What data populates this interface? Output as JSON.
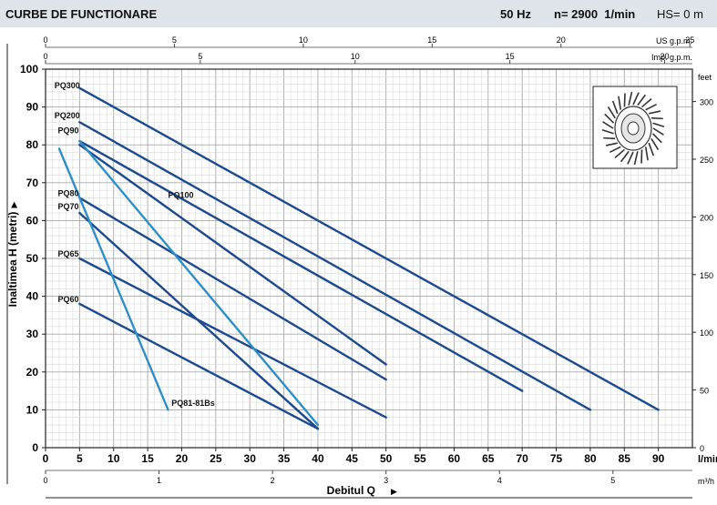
{
  "header": {
    "title": "CURBE DE FUNCTIONARE",
    "freq": "50 Hz",
    "speed": "n= 2900  1/min",
    "hs": "HS= 0 m"
  },
  "chart_data": {
    "type": "line",
    "xlabel": "Debitul  Q",
    "ylabel": "Inaltimea  H  (metri)",
    "x_unit": "l/min",
    "y_right_unit": "feet",
    "xlim": [
      0,
      95
    ],
    "ylim": [
      0,
      100
    ],
    "grid": true,
    "x_ticks": [
      0,
      5,
      10,
      15,
      20,
      25,
      30,
      35,
      40,
      45,
      50,
      55,
      60,
      65,
      70,
      75,
      80,
      85,
      90
    ],
    "y_ticks": [
      0,
      10,
      20,
      30,
      40,
      50,
      60,
      70,
      80,
      90,
      100
    ],
    "top_axes": [
      {
        "label": "US g.p.m.",
        "ticks": [
          0,
          5,
          10,
          15,
          20,
          25
        ]
      },
      {
        "label": "Imp. g.p.m.",
        "ticks": [
          0,
          5,
          10,
          15,
          20
        ]
      }
    ],
    "bottom_axis2": {
      "label": "m³/h",
      "ticks": [
        0,
        1,
        2,
        3,
        4,
        5
      ]
    },
    "right_axis": {
      "label": "feet",
      "ticks": [
        0,
        50,
        100,
        150,
        200,
        250,
        300
      ]
    },
    "series": [
      {
        "name": "PQ300",
        "color": "#1c4a8f",
        "x": [
          5,
          90
        ],
        "y": [
          95,
          10
        ]
      },
      {
        "name": "PQ200",
        "color": "#1c4a8f",
        "x": [
          5,
          80
        ],
        "y": [
          86,
          10
        ]
      },
      {
        "name": "PQ90",
        "color": "#1c4a8f",
        "x": [
          5,
          70
        ],
        "y": [
          81,
          15
        ]
      },
      {
        "name": "PQ100",
        "color": "#1c4a8f",
        "x": [
          5,
          50
        ],
        "y": [
          80,
          22
        ]
      },
      {
        "name": "PQ80",
        "color": "#1c4a8f",
        "x": [
          5,
          50
        ],
        "y": [
          66,
          18
        ]
      },
      {
        "name": "PQ70",
        "color": "#1c4a8f",
        "x": [
          5,
          40
        ],
        "y": [
          62,
          5
        ]
      },
      {
        "name": "PQ65",
        "color": "#1c4a8f",
        "x": [
          5,
          50
        ],
        "y": [
          50,
          8
        ]
      },
      {
        "name": "PQ60",
        "color": "#1c4a8f",
        "x": [
          5,
          40
        ],
        "y": [
          38,
          5
        ]
      },
      {
        "name": "PQ81-81Bs",
        "color": "#2d8fc9",
        "x": [
          2,
          18
        ],
        "y": [
          79,
          10
        ]
      },
      {
        "name": "",
        "color": "#2d8fc9",
        "x": [
          5,
          40
        ],
        "y": [
          81,
          6
        ]
      }
    ],
    "curve_labels": [
      {
        "series": "PQ300",
        "x": 1.3,
        "y": 95
      },
      {
        "series": "PQ200",
        "x": 1.3,
        "y": 87
      },
      {
        "series": "PQ90",
        "x": 1.8,
        "y": 83
      },
      {
        "series": "PQ100",
        "x": 18,
        "y": 66
      },
      {
        "series": "PQ80",
        "x": 1.8,
        "y": 66.5
      },
      {
        "series": "PQ70",
        "x": 1.8,
        "y": 63
      },
      {
        "series": "PQ65",
        "x": 1.8,
        "y": 50.5
      },
      {
        "series": "PQ60",
        "x": 1.8,
        "y": 38.5
      },
      {
        "series": "PQ81-81Bs",
        "x": 18.5,
        "y": 11
      }
    ]
  },
  "inset": {
    "icon": "impeller-icon"
  }
}
